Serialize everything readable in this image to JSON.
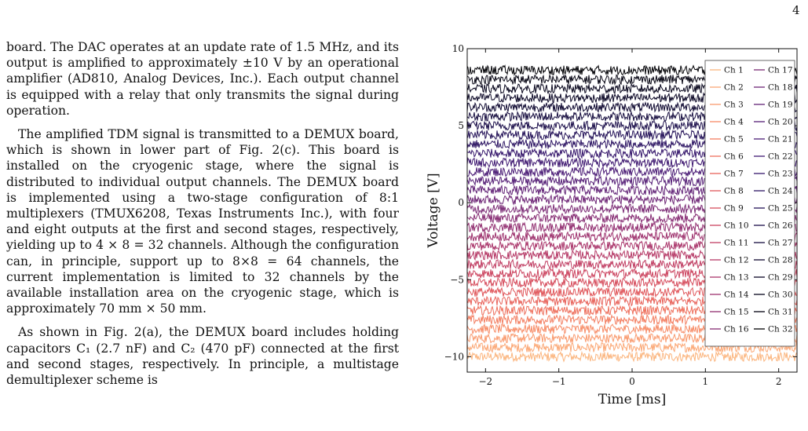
{
  "page_number": "4",
  "paragraphs": [
    "board. The DAC operates at an update rate of 1.5 MHz, and its output is amplified to approximately ±10 V by an operational amplifier (AD810, Analog Devices, Inc.). Each output channel is equipped with a relay that only transmits the signal during operation.",
    "The amplified TDM signal is transmitted to a DEMUX board, which is shown in lower part of Fig. 2(c). This board is installed on the cryogenic stage, where the signal is distributed to individual output channels. The DEMUX board is implemented using a two-stage configuration of 8:1 multiplexers (TMUX6208, Texas Instruments Inc.), with four and eight outputs at the first and second stages, respectively, yielding up to 4 × 8 = 32 channels. Although the configuration can, in principle, support up to 8×8 = 64 channels, the current implementation is limited to 32 channels by the available installation area on the cryogenic stage, which is approximately 70 mm × 50 mm.",
    "As shown in Fig. 2(a), the DEMUX board includes holding capacitors C₁ (2.7 nF) and C₂ (470 pF) connected at the first and second stages, respectively. In principle, a multistage demultiplexer scheme is"
  ],
  "chart_data": {
    "type": "line",
    "xlabel": "Time [ms]",
    "ylabel": "Voltage [V]",
    "xlim": [
      -2.25,
      2.25
    ],
    "ylim": [
      -11,
      10
    ],
    "x_ticks": [
      -2,
      -1,
      0,
      1,
      2
    ],
    "y_ticks": [
      -10,
      -5,
      0,
      5,
      10
    ],
    "grid": false,
    "legend_position": "top-right",
    "series": [
      {
        "name": "Ch 1",
        "offset": -10.0,
        "color": "#fbb57e"
      },
      {
        "name": "Ch 2",
        "offset": -9.4,
        "color": "#fba876"
      },
      {
        "name": "Ch 3",
        "offset": -8.8,
        "color": "#f99a6e"
      },
      {
        "name": "Ch 4",
        "offset": -8.2,
        "color": "#f78c67"
      },
      {
        "name": "Ch 5",
        "offset": -7.6,
        "color": "#f37e61"
      },
      {
        "name": "Ch 6",
        "offset": -7.0,
        "color": "#ee705d"
      },
      {
        "name": "Ch 7",
        "offset": -6.4,
        "color": "#e8635b"
      },
      {
        "name": "Ch 8",
        "offset": -5.8,
        "color": "#e0575b"
      },
      {
        "name": "Ch 9",
        "offset": -5.2,
        "color": "#d64d5d"
      },
      {
        "name": "Ch 10",
        "offset": -4.6,
        "color": "#cc4560"
      },
      {
        "name": "Ch 11",
        "offset": -4.0,
        "color": "#c13f64"
      },
      {
        "name": "Ch 12",
        "offset": -3.4,
        "color": "#b63a67"
      },
      {
        "name": "Ch 13",
        "offset": -2.8,
        "color": "#aa366b"
      },
      {
        "name": "Ch 14",
        "offset": -2.2,
        "color": "#9e326e"
      },
      {
        "name": "Ch 15",
        "offset": -1.6,
        "color": "#922f71"
      },
      {
        "name": "Ch 16",
        "offset": -1.0,
        "color": "#862c73"
      },
      {
        "name": "Ch 17",
        "offset": -0.4,
        "color": "#7a2974"
      },
      {
        "name": "Ch 18",
        "offset": 0.2,
        "color": "#6e2676"
      },
      {
        "name": "Ch 19",
        "offset": 0.8,
        "color": "#622377"
      },
      {
        "name": "Ch 20",
        "offset": 1.4,
        "color": "#562077"
      },
      {
        "name": "Ch 21",
        "offset": 2.0,
        "color": "#4b1c76"
      },
      {
        "name": "Ch 22",
        "offset": 2.6,
        "color": "#401a72"
      },
      {
        "name": "Ch 23",
        "offset": 3.2,
        "color": "#36176c"
      },
      {
        "name": "Ch 24",
        "offset": 3.8,
        "color": "#2d1563"
      },
      {
        "name": "Ch 25",
        "offset": 4.4,
        "color": "#241258"
      },
      {
        "name": "Ch 26",
        "offset": 5.0,
        "color": "#1c0f4b"
      },
      {
        "name": "Ch 27",
        "offset": 5.6,
        "color": "#150c3e"
      },
      {
        "name": "Ch 28",
        "offset": 6.2,
        "color": "#0f0931"
      },
      {
        "name": "Ch 29",
        "offset": 6.8,
        "color": "#0a0625"
      },
      {
        "name": "Ch 30",
        "offset": 7.4,
        "color": "#06041b"
      },
      {
        "name": "Ch 31",
        "offset": 8.0,
        "color": "#030210"
      },
      {
        "name": "Ch 32",
        "offset": 8.6,
        "color": "#000004"
      }
    ],
    "noise_amplitude": 0.3
  }
}
